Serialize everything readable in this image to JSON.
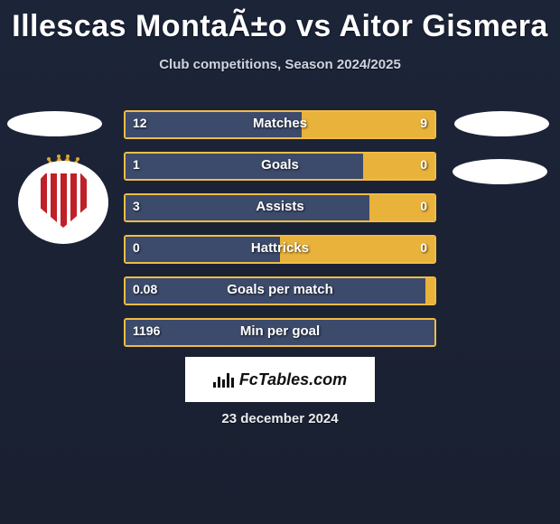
{
  "title": "Illescas MontaÃ±o vs Aitor Gismera",
  "subtitle": "Club competitions, Season 2024/2025",
  "date": "23 december 2024",
  "colors": {
    "background": "#1a2033",
    "left_bar": "#3c4a6b",
    "right_bar": "#e9b23a",
    "border": "#f0bc45",
    "title": "#ffffff",
    "subtitle": "#d0d4df"
  },
  "logo": {
    "text": "FcTables.com",
    "icon": "bar-chart-icon"
  },
  "stats": [
    {
      "label": "Matches",
      "left_val": "12",
      "right_val": "9",
      "left_pct": 57,
      "right_pct": 43
    },
    {
      "label": "Goals",
      "left_val": "1",
      "right_val": "0",
      "left_pct": 77,
      "right_pct": 23
    },
    {
      "label": "Assists",
      "left_val": "3",
      "right_val": "0",
      "left_pct": 79,
      "right_pct": 21
    },
    {
      "label": "Hattricks",
      "left_val": "0",
      "right_val": "0",
      "left_pct": 50,
      "right_pct": 50
    },
    {
      "label": "Goals per match",
      "left_val": "0.08",
      "right_val": "",
      "left_pct": 97,
      "right_pct": 3
    },
    {
      "label": "Min per goal",
      "left_val": "1196",
      "right_val": "",
      "left_pct": 100,
      "right_pct": 0
    }
  ]
}
